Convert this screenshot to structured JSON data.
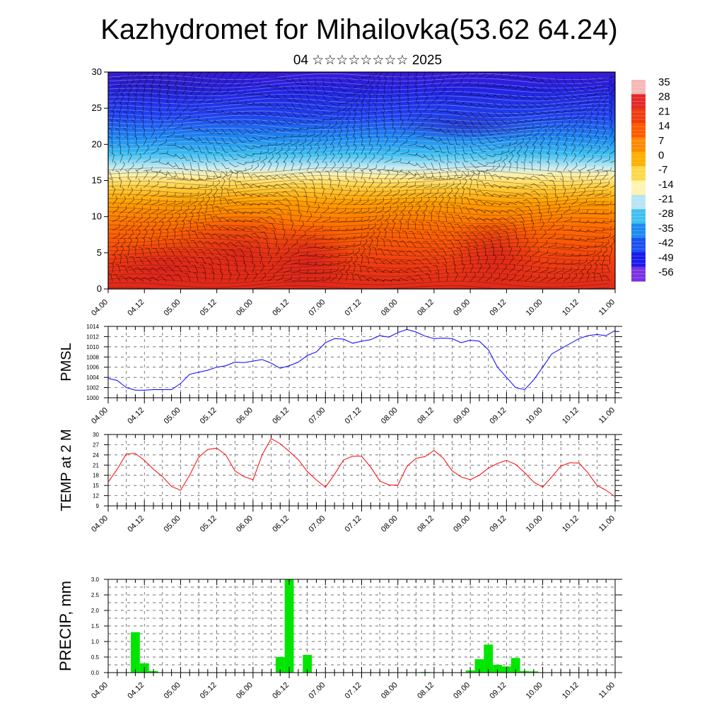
{
  "header": {
    "title": "Kazhydromet for Mihailovka(53.62 64.24)",
    "subtitle": "04 ☆☆☆☆☆☆☆☆ 2025"
  },
  "colors": {
    "pressure_line": "#0000ff",
    "temp_line": "#ff0000",
    "precip_bar": "#00e600",
    "grid": "#333333"
  },
  "chart_data": [
    {
      "type": "heatmap",
      "name": "upper-air-temperature-cross-section",
      "x_tick_labels": [
        "04.00",
        "04.12",
        "05.00",
        "05.12",
        "06.00",
        "06.12",
        "07.00",
        "07.12",
        "08.00",
        "08.12",
        "09.00",
        "09.12",
        "10.00",
        "10.12",
        "11.00"
      ],
      "y_ticks": [
        0,
        5,
        10,
        15,
        20,
        25,
        30
      ],
      "ylim": [
        0,
        30
      ],
      "colorbar_labels": [
        "35",
        "28",
        "21",
        "14",
        "7",
        "0",
        "-7",
        "-14",
        "-21",
        "-28",
        "-35",
        "-42",
        "-49",
        "-56"
      ],
      "colorbar_colors": [
        "#f7b8b8",
        "#e52828",
        "#f03c10",
        "#ff5a00",
        "#ff8a00",
        "#ffb000",
        "#ffd84a",
        "#fff4b0",
        "#b8e4f4",
        "#40c0f0",
        "#1e8af0",
        "#1c50f0",
        "#1a1aee",
        "#7a32e0"
      ],
      "overlay": "wind barbs and temperature contours",
      "grid": false
    },
    {
      "type": "line",
      "name": "PMSL",
      "ylabel": "PMSL",
      "ylim": [
        1000,
        1014
      ],
      "y_ticks": [
        1000,
        1002,
        1004,
        1006,
        1008,
        1010,
        1012,
        1014
      ],
      "x_tick_labels": [
        "04.00",
        "04.12",
        "05.00",
        "05.12",
        "06.00",
        "06.12",
        "07.00",
        "07.12",
        "08.00",
        "08.12",
        "09.00",
        "09.12",
        "10.00",
        "10.12",
        "11.00"
      ],
      "x": [
        0,
        3,
        6,
        9,
        12,
        15,
        18,
        21,
        24,
        27,
        30,
        33,
        36,
        39,
        42,
        45,
        48,
        51,
        54,
        57,
        60,
        63,
        66,
        69,
        72,
        75,
        78,
        81,
        84,
        87,
        90,
        93,
        96,
        99,
        102,
        105,
        108,
        111,
        114,
        117,
        120,
        123,
        126,
        129,
        132,
        135,
        138,
        141,
        144,
        147,
        150,
        153,
        156,
        159,
        162,
        165,
        168
      ],
      "values": [
        1003.8,
        1003.4,
        1002.0,
        1001.5,
        1001.5,
        1001.6,
        1001.6,
        1001.6,
        1002.8,
        1004.6,
        1005.0,
        1005.4,
        1006.0,
        1006.3,
        1007.0,
        1006.9,
        1007.2,
        1007.5,
        1006.8,
        1005.8,
        1006.3,
        1007.0,
        1008.3,
        1009.0,
        1010.8,
        1011.6,
        1011.5,
        1010.7,
        1011.1,
        1011.4,
        1012.2,
        1011.9,
        1012.8,
        1013.4,
        1012.9,
        1012.1,
        1011.6,
        1011.7,
        1011.6,
        1010.8,
        1011.3,
        1011.1,
        1009.4,
        1006.0,
        1004.0,
        1002.0,
        1001.6,
        1003.5,
        1006.0,
        1008.6,
        1009.6,
        1010.6,
        1011.6,
        1012.2,
        1012.4,
        1012.2,
        1013.2
      ],
      "grid": true
    },
    {
      "type": "line",
      "name": "TEMP at 2 M",
      "ylabel": "TEMP at 2 M",
      "ylim": [
        9,
        30
      ],
      "y_ticks": [
        9,
        12,
        15,
        18,
        21,
        24,
        27,
        30
      ],
      "x_tick_labels": [
        "04.00",
        "04.12",
        "05.00",
        "05.12",
        "06.00",
        "06.12",
        "07.00",
        "07.12",
        "08.00",
        "08.12",
        "09.00",
        "09.12",
        "10.00",
        "10.12",
        "11.00"
      ],
      "x": [
        0,
        3,
        6,
        9,
        12,
        15,
        18,
        21,
        24,
        27,
        30,
        33,
        36,
        39,
        42,
        45,
        48,
        51,
        54,
        57,
        60,
        63,
        66,
        69,
        72,
        75,
        78,
        81,
        84,
        87,
        90,
        93,
        96,
        99,
        102,
        105,
        108,
        111,
        114,
        117,
        120,
        123,
        126,
        129,
        132,
        135,
        138,
        141,
        144,
        147,
        150,
        153,
        156,
        159,
        162,
        165,
        168
      ],
      "values": [
        16.0,
        19.8,
        24.3,
        24.4,
        22.4,
        19.8,
        17.6,
        14.7,
        13.6,
        18.0,
        23.3,
        25.6,
        26.0,
        24.0,
        19.3,
        17.6,
        16.7,
        24.0,
        28.8,
        27.3,
        25.0,
        22.6,
        19.1,
        16.6,
        14.5,
        18.3,
        22.5,
        23.6,
        23.6,
        20.4,
        16.3,
        15.2,
        15.1,
        20.6,
        23.0,
        23.5,
        25.3,
        23.1,
        19.3,
        17.5,
        16.7,
        18.0,
        20.1,
        21.5,
        22.4,
        21.2,
        18.8,
        16.0,
        14.5,
        17.5,
        20.7,
        21.7,
        21.6,
        18.7,
        15.0,
        13.6,
        11.7
      ],
      "grid": true
    },
    {
      "type": "bar",
      "name": "PRECIP, mm",
      "ylabel": "PRECIP, mm",
      "ylim": [
        0,
        3
      ],
      "y_ticks": [
        "0.0",
        "0.5",
        "1.0",
        "1.5",
        "2.0",
        "2.5",
        "3.0"
      ],
      "x_tick_labels": [
        "04.00",
        "04.12",
        "05.00",
        "05.12",
        "06.00",
        "06.12",
        "07.00",
        "07.12",
        "08.00",
        "08.12",
        "09.00",
        "09.12",
        "10.00",
        "10.12",
        "11.00"
      ],
      "x": [
        9,
        12,
        15,
        57,
        60,
        66,
        105,
        120,
        123,
        126,
        129,
        132,
        135,
        138,
        141
      ],
      "values": [
        1.3,
        0.3,
        0.05,
        0.5,
        3.0,
        0.57,
        0.02,
        0.07,
        0.43,
        0.9,
        0.25,
        0.2,
        0.47,
        0.05,
        0.04
      ],
      "grid": true
    }
  ]
}
